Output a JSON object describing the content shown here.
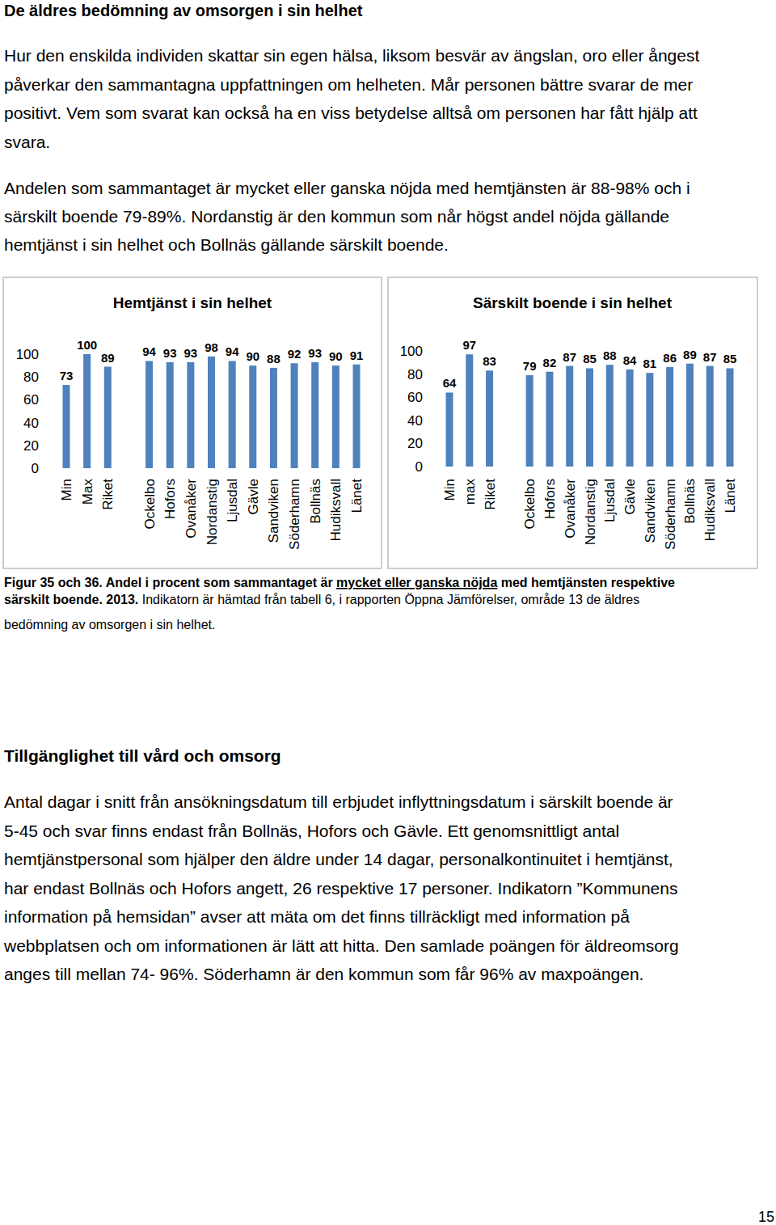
{
  "document": {
    "heading": "De äldres bedömning av omsorgen i sin helhet",
    "intro": [
      "Hur den enskilda individen skattar sin egen hälsa, liksom besvär av ängslan, oro eller ångest",
      "påverkar den sammantagna uppfattningen om helheten. Mår personen bättre svarar de mer",
      "positivt. Vem som svarat kan också ha en viss betydelse alltså om personen har fått hjälp att",
      "svara."
    ],
    "summary": [
      "Andelen som sammantaget är mycket eller ganska nöjda med hemtjänsten är 88-98% och i",
      "särskilt boende 79-89%. Nordanstig är den kommun som når högst andel nöjda gällande",
      "hemtjänst i sin helhet och Bollnäs gällande särskilt boende."
    ],
    "caption": {
      "lines": [
        [
          {
            "text": "Figur 35 och 36. Andel i procent som sammantaget är ",
            "style": "bold"
          },
          {
            "text": "mycket eller ganska nöjda",
            "style": "bold-underline"
          },
          {
            "text": " med hemtjänsten respektive",
            "style": "bold"
          }
        ],
        [
          {
            "text": "särskilt boende. 2013.",
            "style": "bold"
          },
          {
            "text": " Indikatorn är hämtad från tabell 6, i rapporten Öppna Jämförelser, område 13 de äldres",
            "style": "normal"
          }
        ],
        [
          {
            "text": "bedömning av omsorgen i sin helhet.",
            "style": "normal"
          }
        ]
      ]
    },
    "section_heading": "Tillgänglighet till vård och omsorg",
    "section_text": [
      "Antal dagar i snitt från ansökningsdatum till erbjudet inflyttningsdatum i särskilt boende är",
      "5-45 och svar finns endast från Bollnäs, Hofors och Gävle. Ett genomsnittligt antal",
      "hemtjänstpersonal som hjälper den äldre under 14 dagar, personalkontinuitet i hemtjänst,",
      "har endast Bollnäs och Hofors angett, 26 respektive 17 personer. Indikatorn ”Kommunens",
      "information på hemsidan” avser att mäta om det finns tillräckligt med information på",
      "webbplatsen och om informationen är lätt att hitta. Den samlade poängen för äldreomsorg",
      "anges till mellan 74- 96%. Söderhamn är den kommun som får 96% av maxpoängen."
    ],
    "page_number": "15"
  },
  "chart_data": [
    {
      "type": "bar",
      "title": "Hemtjänst i sin helhet",
      "categories": [
        "Min",
        "Max",
        "Riket",
        null,
        "Ockelbo",
        "Hofors",
        "Ovanåker",
        "Nordanstig",
        "Ljusdal",
        "Gävle",
        "Sandviken",
        "Söderhamn",
        "Bollnäs",
        "Hudiksvall",
        "Länet"
      ],
      "values": [
        73,
        100,
        89,
        null,
        94,
        93,
        93,
        98,
        94,
        90,
        88,
        92,
        93,
        90,
        91
      ],
      "color": "#4f81bd",
      "ylim": [
        0,
        100
      ],
      "yticks": [
        0,
        20,
        40,
        60,
        80,
        100
      ],
      "grid": false,
      "data_labels": true
    },
    {
      "type": "bar",
      "title": "Särskilt boende i sin helhet",
      "categories": [
        "Min",
        "max",
        "Riket",
        null,
        "Ockelbo",
        "Hofors",
        "Ovanåker",
        "Nordanstig",
        "Ljusdal",
        "Gävle",
        "Sandviken",
        "Söderhamn",
        "Bollnäs",
        "Hudiksvall",
        "Länet"
      ],
      "values": [
        64,
        97,
        83,
        null,
        79,
        82,
        87,
        85,
        88,
        84,
        81,
        86,
        89,
        87,
        85
      ],
      "color": "#4f81bd",
      "ylim": [
        0,
        100
      ],
      "yticks": [
        0,
        20,
        40,
        60,
        80,
        100
      ],
      "grid": false,
      "data_labels": true
    }
  ]
}
